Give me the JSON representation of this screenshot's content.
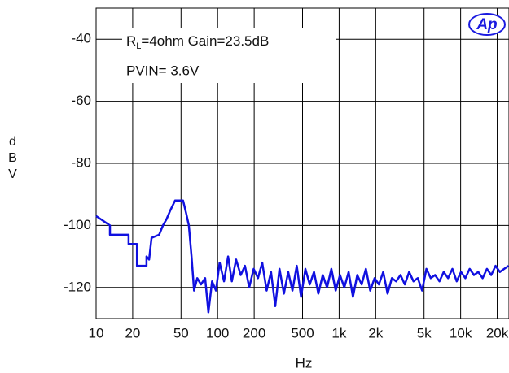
{
  "chart_data": {
    "type": "line",
    "annotation_parts": [
      "R",
      "L",
      "=4ohm Gain=23.5dB"
    ],
    "annotation2": "PVIN= 3.6V",
    "logo": "Ap",
    "x_label": "Hz",
    "y_label": "dBV",
    "x_scale": "log",
    "grid": true,
    "xlim": [
      10,
      25000
    ],
    "ylim": [
      -130,
      -30
    ],
    "xticks": [
      10,
      20,
      50,
      100,
      200,
      500,
      {
        "value": 1000,
        "label": "1k"
      },
      {
        "value": 2000,
        "label": "2k"
      },
      {
        "value": 5000,
        "label": "5k"
      },
      {
        "value": 10000,
        "label": "10k"
      },
      {
        "value": 20000,
        "label": "20k"
      }
    ],
    "yticks": [
      -40,
      -60,
      -80,
      -100,
      -120
    ],
    "x": [
      10,
      13,
      13,
      18.5,
      18.5,
      21.7,
      21.7,
      26,
      26,
      27.3,
      28.6,
      33,
      35.5,
      38,
      41,
      44.7,
      52,
      55,
      58,
      61,
      64,
      68,
      73,
      79,
      84,
      90,
      97,
      104,
      113,
      122,
      131,
      142,
      155,
      168,
      182,
      198,
      215,
      233,
      253,
      275,
      298,
      323,
      351,
      381,
      413,
      448,
      486,
      528,
      573,
      622,
      675,
      733,
      795,
      863,
      937,
      1017,
      1104,
      1198,
      1300,
      1411,
      1532,
      1662,
      1804,
      1958,
      2125,
      2307,
      2503,
      2717,
      2949,
      3201,
      3474,
      3770,
      4092,
      4441,
      4820,
      5231,
      5678,
      6162,
      6688,
      7259,
      7878,
      8550,
      9280,
      10072,
      10931,
      11864,
      12876,
      13975,
      15167,
      16461,
      17866,
      19390,
      21044,
      22840,
      24789
    ],
    "series": [
      {
        "color": "#1010e0",
        "values": [
          -97,
          -100,
          -103,
          -103,
          -106,
          -106,
          -113,
          -113,
          -110,
          -111,
          -104,
          -103,
          -100,
          -98,
          -95,
          -92,
          -92,
          -96,
          -100,
          -110,
          -121,
          -117,
          -119,
          -117,
          -128,
          -118,
          -121,
          -112,
          -118,
          -110,
          -118,
          -111,
          -116,
          -113,
          -120,
          -114,
          -117,
          -112,
          -121,
          -115,
          -126,
          -114,
          -122,
          -115,
          -121,
          -113,
          -123,
          -114,
          -119,
          -115,
          -122,
          -116,
          -120,
          -114,
          -121,
          -116,
          -120,
          -115,
          -123,
          -116,
          -119,
          -114,
          -121,
          -117,
          -119,
          -115,
          -122,
          -117,
          -118,
          -116,
          -119,
          -115,
          -118,
          -117,
          -121,
          -114,
          -117,
          -116,
          -118,
          -115,
          -117,
          -114,
          -118,
          -115,
          -117,
          -114,
          -116,
          -115,
          -117,
          -114,
          -116,
          -113,
          -115,
          -114,
          -113
        ]
      }
    ]
  }
}
